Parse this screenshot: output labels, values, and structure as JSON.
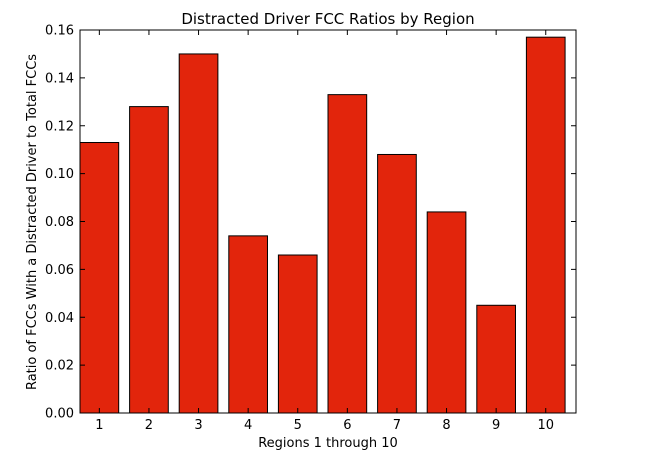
{
  "chart_data": {
    "type": "bar",
    "title": "Distracted Driver FCC Ratios by Region",
    "xlabel": "Regions 1 through 10",
    "ylabel": "Ratio of FCCs With a Distracted Driver to Total FCCs",
    "categories": [
      "1",
      "2",
      "3",
      "4",
      "5",
      "6",
      "7",
      "8",
      "9",
      "10"
    ],
    "values": [
      0.113,
      0.128,
      0.15,
      0.074,
      0.066,
      0.133,
      0.108,
      0.084,
      0.045,
      0.157
    ],
    "ylim": [
      0,
      0.16
    ],
    "yticks": [
      "0.00",
      "0.02",
      "0.04",
      "0.06",
      "0.08",
      "0.10",
      "0.12",
      "0.14",
      "0.16"
    ],
    "grid": false,
    "bar_color": "#e2250c",
    "edge_color": "#000000"
  }
}
